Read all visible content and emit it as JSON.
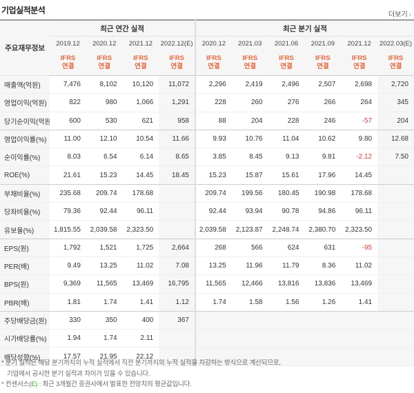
{
  "header": {
    "title": "기업실적분석",
    "more": "더보기"
  },
  "table": {
    "label_header": "주요재무정보",
    "groups": [
      "최근 연간 실적",
      "최근 분기 실적"
    ],
    "periods": [
      "2019.12",
      "2020.12",
      "2021.12",
      "2022.12(E)",
      "2020.12",
      "2021.03",
      "2021.06",
      "2021.09",
      "2021.12",
      "2022.03(E)"
    ],
    "standards": [
      {
        "basis": "IFRS",
        "scope": "연결"
      },
      {
        "basis": "IFRS",
        "scope": "연결"
      },
      {
        "basis": "IFRS",
        "scope": "연결"
      },
      {
        "basis": "IFRS",
        "scope": "연결"
      },
      {
        "basis": "IFRS",
        "scope": "연결"
      },
      {
        "basis": "IFRS",
        "scope": "연결"
      },
      {
        "basis": "IFRS",
        "scope": "연결"
      },
      {
        "basis": "IFRS",
        "scope": "연결"
      },
      {
        "basis": "IFRS",
        "scope": "연결"
      },
      {
        "basis": "IFRS",
        "scope": "연결"
      }
    ],
    "rows": [
      {
        "label": "매출액(억원)",
        "values": [
          "7,476",
          "8,102",
          "10,120",
          "11,072",
          "2,296",
          "2,419",
          "2,496",
          "2,507",
          "2,698",
          "2,720"
        ]
      },
      {
        "label": "영업이익(억원)",
        "values": [
          "822",
          "980",
          "1,066",
          "1,291",
          "228",
          "260",
          "276",
          "266",
          "264",
          "345"
        ]
      },
      {
        "label": "당기순이익(억원)",
        "values": [
          "600",
          "530",
          "621",
          "958",
          "88",
          "204",
          "228",
          "246",
          "-57",
          "204"
        ]
      },
      {
        "label": "영업이익률(%)",
        "values": [
          "11.00",
          "12.10",
          "10.54",
          "11.66",
          "9.93",
          "10.76",
          "11.04",
          "10.62",
          "9.80",
          "12.68"
        ]
      },
      {
        "label": "순이익률(%)",
        "values": [
          "8.03",
          "6.54",
          "6.14",
          "8.65",
          "3.85",
          "8.45",
          "9.13",
          "9.81",
          "-2.12",
          "7.50"
        ]
      },
      {
        "label": "ROE(%)",
        "values": [
          "21.61",
          "15.23",
          "14.45",
          "18.45",
          "15.23",
          "15.87",
          "15.61",
          "17.96",
          "14.45",
          null
        ]
      },
      {
        "label": "부채비율(%)",
        "values": [
          "235.68",
          "209.74",
          "178.68",
          null,
          "209.74",
          "199.56",
          "180.45",
          "190.98",
          "178.68",
          null
        ]
      },
      {
        "label": "당좌비율(%)",
        "values": [
          "79.36",
          "92.44",
          "96.11",
          null,
          "92.44",
          "93.94",
          "90.78",
          "94.86",
          "96.11",
          null
        ]
      },
      {
        "label": "유보율(%)",
        "values": [
          "1,815.55",
          "2,039.58",
          "2,323.50",
          null,
          "2,039.58",
          "2,123.87",
          "2,248.74",
          "2,380.70",
          "2,323.50",
          null
        ]
      },
      {
        "label": "EPS(원)",
        "values": [
          "1,792",
          "1,521",
          "1,725",
          "2,664",
          "268",
          "566",
          "624",
          "631",
          "-95",
          null
        ]
      },
      {
        "label": "PER(배)",
        "values": [
          "9.49",
          "13.25",
          "11.02",
          "7.08",
          "13.25",
          "11.96",
          "11.79",
          "8.36",
          "11.02",
          null
        ]
      },
      {
        "label": "BPS(원)",
        "values": [
          "9,369",
          "11,565",
          "13,469",
          "16,795",
          "11,565",
          "12,466",
          "13,816",
          "13,836",
          "13,469",
          null
        ]
      },
      {
        "label": "PBR(배)",
        "values": [
          "1.81",
          "1.74",
          "1.41",
          "1.12",
          "1.74",
          "1.58",
          "1.56",
          "1.26",
          "1.41",
          null
        ]
      },
      {
        "label": "주당배당금(원)",
        "values": [
          "330",
          "350",
          "400",
          "367",
          null,
          null,
          null,
          null,
          null,
          null
        ]
      },
      {
        "label": "시가배당률(%)",
        "values": [
          "1.94",
          "1.74",
          "2.11",
          null,
          null,
          null,
          null,
          null,
          null,
          null
        ]
      },
      {
        "label": "배당성향(%)",
        "values": [
          "17.57",
          "21.95",
          "22.12",
          null,
          null,
          null,
          null,
          null,
          null,
          null
        ]
      }
    ]
  },
  "notes": {
    "quarterly_line1": "* 분기 실적은 해당 분기까지의 누적 실적에서 직전 분기까지의 누적 실적을 차감하는 방식으로 계산되므로,",
    "quarterly_line2": "기업에서 공시한 분기 실적과 차이가 있을 수 있습니다.",
    "consensus_prefix": "* 컨센서스",
    "consensus_mark": "(E)",
    "consensus_text": " : 최근 3개월간 증권사에서 발표한 전망치의 평균값입니다."
  }
}
